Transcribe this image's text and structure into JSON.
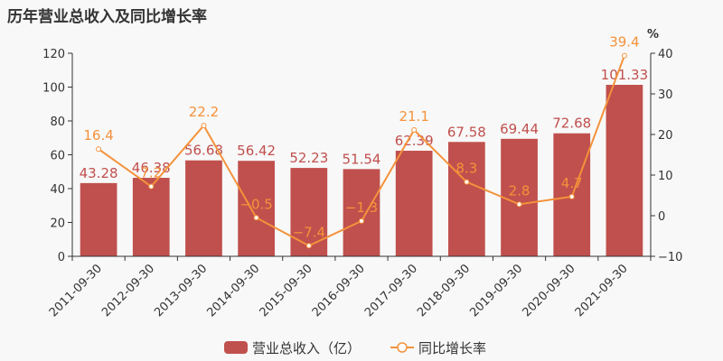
{
  "chart_data": {
    "type": "bar+line",
    "title": "历年营业总收入及同比增长率",
    "categories": [
      "2011-09-30",
      "2012-09-30",
      "2013-09-30",
      "2014-09-30",
      "2015-09-30",
      "2016-09-30",
      "2017-09-30",
      "2018-09-30",
      "2019-09-30",
      "2020-09-30",
      "2021-09-30"
    ],
    "series": [
      {
        "name": "营业总收入（亿）",
        "type": "bar",
        "axis": "left",
        "color": "#c0504d",
        "values": [
          43.28,
          46.38,
          56.68,
          56.42,
          52.23,
          51.54,
          62.39,
          67.58,
          69.44,
          72.68,
          101.33
        ]
      },
      {
        "name": "同比增长率",
        "type": "line",
        "axis": "right",
        "color": "#f4923b",
        "values": [
          16.4,
          7.2,
          22.2,
          -0.5,
          -7.4,
          -1.3,
          21.1,
          8.3,
          2.8,
          4.7,
          39.4
        ]
      }
    ],
    "left_axis": {
      "min": 0,
      "max": 120,
      "ticks": [
        0,
        20,
        40,
        60,
        80,
        100,
        120
      ]
    },
    "right_axis": {
      "label": "%",
      "min": -10,
      "max": 40,
      "ticks": [
        -10,
        0,
        10,
        20,
        30,
        40
      ]
    },
    "grid": false,
    "legend_position": "bottom"
  },
  "legend": {
    "bar_label": "营业总收入（亿）",
    "line_label": "同比增长率"
  }
}
